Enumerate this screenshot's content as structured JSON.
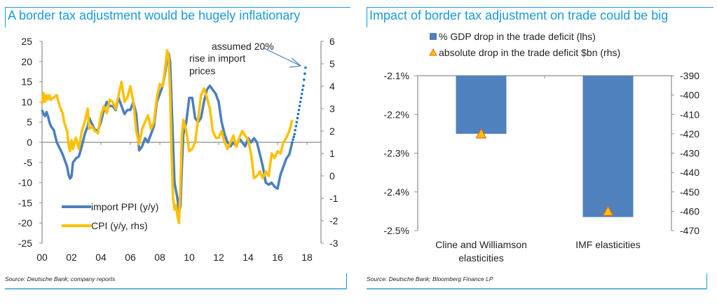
{
  "panels": {
    "left": {
      "title": "A border tax adjustment would be hugely inflationary",
      "source": "Source: Deutsche Bank; company reports"
    },
    "right": {
      "title": "Impact of border tax adjustment on trade could be big",
      "source": "Source: Deutsche Bank; Bloomberg Finance LP"
    }
  },
  "colors": {
    "accent": "#1a9ad6",
    "import_ppi": "#4a7fbf",
    "cpi": "#ffc000",
    "projection": "#1f77c8",
    "bar": "#4f81bd",
    "triangle_fill": "#ffc000",
    "triangle_stroke": "#e06a1b"
  },
  "chart_data": [
    {
      "type": "line",
      "title": "A border tax adjustment would be hugely inflationary",
      "xlabel": "",
      "ylabel_left": "",
      "ylabel_right": "",
      "x_ticks": [
        "00",
        "02",
        "04",
        "06",
        "08",
        "10",
        "12",
        "14",
        "16",
        "18"
      ],
      "x_range": [
        2000,
        2018
      ],
      "y_left": {
        "range": [
          -25,
          25
        ],
        "ticks": [
          "25",
          "20",
          "15",
          "10",
          "5",
          "0",
          "-5",
          "-10",
          "-15",
          "-20",
          "-25"
        ]
      },
      "y_right": {
        "range": [
          -3,
          6
        ],
        "ticks": [
          "6",
          "5",
          "4",
          "3",
          "2",
          "1",
          "0",
          "-1",
          "-2",
          "-3"
        ]
      },
      "legend": {
        "placement": "bottom-left",
        "entries": [
          "import PPI (y/y)",
          "CPI (y/y, rhs)"
        ]
      },
      "annotation": {
        "lines": [
          "assumed 20%",
          "rise in import",
          "prices"
        ]
      },
      "series": [
        {
          "name": "import PPI (y/y)",
          "axis": "left",
          "x": [
            2000.0,
            2000.1,
            2000.2,
            2000.3,
            2000.4,
            2000.5,
            2000.6,
            2000.8,
            2001.0,
            2001.2,
            2001.4,
            2001.5,
            2001.7,
            2001.8,
            2001.9,
            2002.0,
            2002.1,
            2002.3,
            2002.5,
            2002.7,
            2002.9,
            2003.1,
            2003.2,
            2003.4,
            2003.6,
            2003.8,
            2004.0,
            2004.2,
            2004.4,
            2004.6,
            2004.8,
            2005.0,
            2005.2,
            2005.4,
            2005.6,
            2005.8,
            2006.0,
            2006.2,
            2006.4,
            2006.6,
            2006.8,
            2007.0,
            2007.2,
            2007.4,
            2007.6,
            2007.8,
            2008.0,
            2008.2,
            2008.4,
            2008.5,
            2008.6,
            2008.7,
            2008.8,
            2008.9,
            2009.0,
            2009.1,
            2009.2,
            2009.3,
            2009.4,
            2009.5,
            2009.6,
            2009.8,
            2010.0,
            2010.2,
            2010.4,
            2010.6,
            2010.8,
            2011.0,
            2011.2,
            2011.4,
            2011.6,
            2011.8,
            2012.0,
            2012.2,
            2012.4,
            2012.6,
            2012.8,
            2013.0,
            2013.2,
            2013.4,
            2013.6,
            2013.8,
            2014.0,
            2014.2,
            2014.4,
            2014.6,
            2014.8,
            2015.0,
            2015.2,
            2015.4,
            2015.6,
            2015.8,
            2016.0,
            2016.2,
            2016.4,
            2016.6,
            2016.8,
            2017.0
          ],
          "y": [
            8,
            7,
            6.5,
            7.5,
            6.5,
            5,
            4,
            3,
            0,
            -1.5,
            -3,
            -4,
            -6,
            -8,
            -9,
            -8.5,
            -5,
            -4,
            -3.5,
            -1,
            2,
            4,
            6,
            4.5,
            3,
            3,
            5,
            8,
            10,
            9,
            9,
            8,
            11,
            9,
            7,
            8,
            8,
            10,
            7,
            -2,
            -1,
            1,
            0,
            2,
            4,
            10,
            12,
            14,
            18,
            21,
            22,
            20,
            10,
            0,
            -10,
            -12,
            -14,
            -17,
            -16,
            -6,
            2,
            5,
            11,
            11,
            6,
            5,
            6,
            10,
            13,
            14,
            13,
            12,
            10,
            5,
            2,
            0,
            -1,
            0,
            -1,
            1,
            0,
            -1,
            1,
            0,
            1,
            0,
            -3,
            -6,
            -10,
            -10.5,
            -10,
            -11,
            -11.5,
            -8,
            -6,
            -4,
            -3,
            0
          ]
        },
        {
          "name": "CPI (y/y, rhs)",
          "axis": "right",
          "x": [
            2000.0,
            2000.1,
            2000.2,
            2000.3,
            2000.4,
            2000.5,
            2000.6,
            2000.8,
            2001.0,
            2001.2,
            2001.4,
            2001.5,
            2001.7,
            2001.8,
            2001.9,
            2002.0,
            2002.1,
            2002.3,
            2002.5,
            2002.7,
            2002.9,
            2003.1,
            2003.2,
            2003.4,
            2003.6,
            2003.8,
            2004.0,
            2004.2,
            2004.4,
            2004.6,
            2004.8,
            2005.0,
            2005.2,
            2005.4,
            2005.6,
            2005.8,
            2006.0,
            2006.2,
            2006.4,
            2006.6,
            2006.8,
            2007.0,
            2007.2,
            2007.4,
            2007.6,
            2007.8,
            2008.0,
            2008.2,
            2008.4,
            2008.5,
            2008.6,
            2008.7,
            2008.8,
            2008.9,
            2009.0,
            2009.1,
            2009.2,
            2009.3,
            2009.4,
            2009.5,
            2009.6,
            2009.8,
            2010.0,
            2010.2,
            2010.4,
            2010.6,
            2010.8,
            2011.0,
            2011.2,
            2011.4,
            2011.6,
            2011.8,
            2012.0,
            2012.2,
            2012.4,
            2012.6,
            2012.8,
            2013.0,
            2013.2,
            2013.4,
            2013.6,
            2013.8,
            2014.0,
            2014.2,
            2014.4,
            2014.6,
            2014.8,
            2015.0,
            2015.2,
            2015.4,
            2015.6,
            2015.8,
            2016.0,
            2016.2,
            2016.4,
            2016.6,
            2016.8,
            2017.0
          ],
          "y": [
            3.2,
            3.7,
            3.3,
            3.6,
            3.4,
            3.6,
            3.4,
            3.5,
            3.6,
            3.1,
            2.8,
            2.4,
            2.0,
            1.4,
            1.1,
            1.6,
            1.2,
            1.7,
            1.2,
            2.0,
            2.4,
            3.0,
            2.1,
            2.2,
            2.0,
            1.9,
            2.7,
            3.1,
            2.8,
            3.4,
            3.3,
            3.0,
            3.6,
            4.2,
            3.3,
            3.5,
            4.0,
            3.3,
            2.0,
            1.4,
            2.1,
            2.4,
            2.7,
            2.1,
            2.4,
            3.5,
            4.1,
            4.0,
            5.0,
            5.6,
            5.3,
            3.7,
            1.0,
            -1.0,
            -1.5,
            -1.3,
            -1.8,
            -2.1,
            -0.5,
            1.8,
            2.5,
            2.0,
            1.1,
            1.2,
            1.5,
            2.5,
            3.6,
            3.9,
            3.5,
            3.0,
            2.0,
            1.7,
            1.7,
            2.0,
            1.5,
            1.2,
            1.5,
            1.8,
            1.3,
            1.7,
            2.0,
            1.8,
            1.6,
            1.0,
            -0.1,
            0.0,
            0.2,
            -0.1,
            0.2,
            0.0,
            1.0,
            0.8,
            1.1,
            1.0,
            1.5,
            1.7,
            2.0,
            2.5
          ]
        },
        {
          "name": "projection (assumed 20% rise in import prices)",
          "axis": "left",
          "style": "dotted",
          "x": [
            2017.0,
            2017.15,
            2017.3,
            2017.45,
            2017.6,
            2017.75,
            2017.9
          ],
          "y": [
            0,
            2,
            5,
            8,
            11,
            14,
            18.5
          ]
        }
      ]
    },
    {
      "type": "bar",
      "title": "Impact of border tax adjustment on trade could be big",
      "categories": [
        "Cline and Williamson elasticities",
        "IMF elasticities"
      ],
      "category_lines": [
        [
          "Cline and Williamson",
          "elasticities"
        ],
        [
          "IMF elasticities"
        ]
      ],
      "y_left": {
        "range": [
          -2.5,
          -2.1
        ],
        "ticks": [
          "-2.1%",
          "-2.2%",
          "-2.3%",
          "-2.4%",
          "-2.5%"
        ]
      },
      "y_right": {
        "range": [
          -470,
          -390
        ],
        "ticks": [
          "-390",
          "-400",
          "-410",
          "-420",
          "-430",
          "-440",
          "-450",
          "-460",
          "-470"
        ]
      },
      "legend": {
        "placement": "top",
        "entries": [
          "% GDP drop in the trade deficit (lhs)",
          "absolute drop in the trade deficit $bn (rhs)"
        ]
      },
      "series": [
        {
          "name": "% GDP drop in the trade deficit (lhs)",
          "axis": "left",
          "kind": "bar",
          "values": [
            -2.25,
            -2.465
          ]
        },
        {
          "name": "absolute drop in the trade deficit $bn (rhs)",
          "axis": "right",
          "kind": "triangle-marker",
          "values": [
            -420,
            -460
          ]
        }
      ]
    }
  ]
}
